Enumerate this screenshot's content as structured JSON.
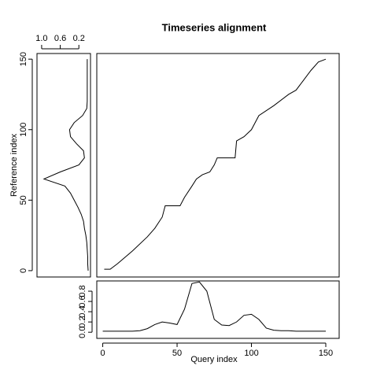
{
  "chart_data": [
    {
      "type": "line",
      "title": "Timeseries alignment",
      "color": "#000000",
      "x": [
        1,
        5,
        10,
        20,
        30,
        35,
        40,
        42,
        52,
        55,
        60,
        63,
        67,
        72,
        75,
        77,
        89,
        90,
        95,
        100,
        105,
        115,
        125,
        130,
        135,
        140,
        145,
        150
      ],
      "values": [
        1,
        1,
        5,
        14,
        24,
        30,
        38,
        46,
        46,
        52,
        60,
        65,
        68,
        70,
        75,
        80,
        80,
        92,
        95,
        100,
        110,
        117,
        125,
        128,
        135,
        142,
        148,
        150
      ],
      "xlim": [
        -4,
        159
      ],
      "ylim": [
        -4.5,
        154
      ]
    },
    {
      "type": "line",
      "orientation": "horizontal",
      "ylabel": "Reference index",
      "color": "#000000",
      "x": [
        0,
        5,
        10,
        15,
        20,
        25,
        30,
        35,
        40,
        45,
        50,
        55,
        60,
        65,
        70,
        75,
        80,
        85,
        90,
        95,
        100,
        105,
        110,
        115,
        120,
        125,
        130,
        135,
        140,
        145,
        150
      ],
      "values": [
        0.0,
        0.01,
        0.01,
        0.02,
        0.03,
        0.05,
        0.08,
        0.1,
        0.15,
        0.22,
        0.3,
        0.38,
        0.5,
        0.95,
        0.6,
        0.2,
        0.08,
        0.1,
        0.25,
        0.38,
        0.4,
        0.3,
        0.12,
        0.03,
        0.02,
        0.02,
        0.02,
        0.02,
        0.02,
        0.02,
        0.02
      ],
      "xlim": [
        -4.5,
        154
      ],
      "xticks": [
        0,
        50,
        100,
        150
      ],
      "ylim": [
        1.1,
        -0.05
      ],
      "yticks": [
        {
          "value": 1,
          "label": "1.0"
        },
        0.6,
        0.2
      ]
    },
    {
      "type": "line",
      "xlabel": "Query index",
      "color": "#000000",
      "x": [
        0,
        5,
        10,
        15,
        20,
        25,
        30,
        35,
        40,
        45,
        50,
        55,
        60,
        65,
        70,
        75,
        80,
        85,
        90,
        95,
        100,
        105,
        110,
        115,
        120,
        125,
        130,
        135,
        140,
        145,
        150
      ],
      "values": [
        0.02,
        0.02,
        0.02,
        0.02,
        0.02,
        0.03,
        0.07,
        0.15,
        0.2,
        0.18,
        0.15,
        0.45,
        0.95,
        0.98,
        0.8,
        0.25,
        0.14,
        0.13,
        0.2,
        0.33,
        0.35,
        0.25,
        0.08,
        0.04,
        0.03,
        0.03,
        0.02,
        0.02,
        0.02,
        0.02,
        0.02
      ],
      "xlim": [
        -4,
        159
      ],
      "xticks": [
        0,
        50,
        100,
        150
      ],
      "ylim": [
        -0.12,
        1.0
      ],
      "yticks": [
        {
          "value": 0,
          "label": "0.0"
        },
        0.2,
        0.4,
        0.6,
        0.8
      ]
    }
  ]
}
